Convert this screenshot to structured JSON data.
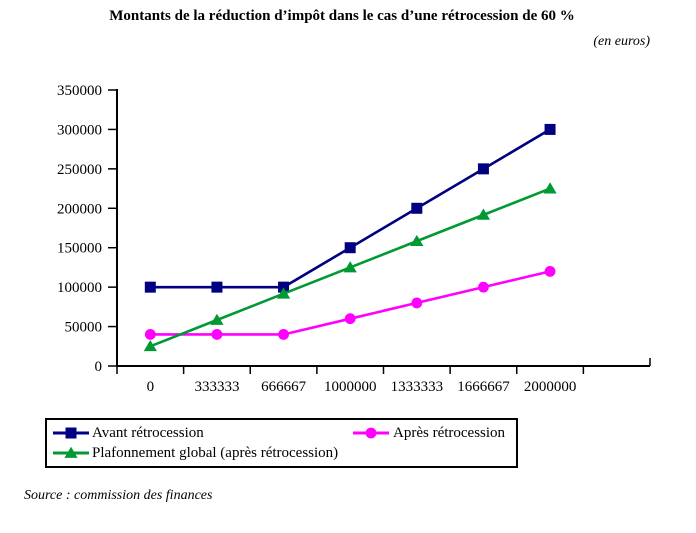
{
  "unit_note": "(en euros)",
  "source_note": "Source : commission des finances",
  "chart_data": {
    "type": "line",
    "title": "Montants de la réduction d’impôt dans le cas d’une rétrocession de 60 %",
    "unit": "(en euros)",
    "categories": [
      "0",
      "333333",
      "666667",
      "1000000",
      "1333333",
      "1666667",
      "2000000"
    ],
    "y_ticks": [
      0,
      50000,
      100000,
      150000,
      200000,
      250000,
      300000,
      350000
    ],
    "ylim": [
      0,
      350000
    ],
    "grid": false,
    "legend_position": "bottom-left-box",
    "axis_color": "#000000",
    "series": [
      {
        "name": "Avant rétrocession",
        "marker": "square",
        "color": "#000080",
        "values": [
          100000,
          100000,
          100000,
          150000,
          200000,
          250000,
          300000
        ]
      },
      {
        "name": "Après rétrocession",
        "marker": "circle",
        "color": "#FF00FF",
        "values": [
          40000,
          40000,
          40000,
          60000,
          80000,
          100000,
          120000
        ]
      },
      {
        "name": "Plafonnement global (après rétrocession)",
        "marker": "triangle",
        "color": "#009933",
        "values": [
          25000,
          58333,
          91667,
          125000,
          158333,
          191667,
          225000
        ]
      }
    ]
  }
}
